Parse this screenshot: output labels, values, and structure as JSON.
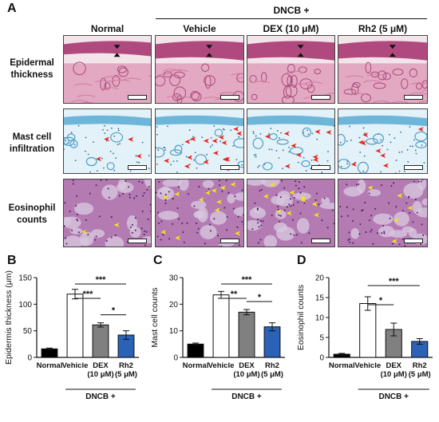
{
  "panel_a": {
    "letter": "A",
    "treatment_header": "DNCB +",
    "columns": [
      "Normal",
      "Vehicle",
      "DEX (10 μM)",
      "Rh2 (5 μM)"
    ],
    "rows": [
      {
        "lines": [
          "Epidermal",
          "thickness"
        ]
      },
      {
        "lines": [
          "Mast cell",
          "infiltration"
        ]
      },
      {
        "lines": [
          "Eosinophil",
          "counts"
        ]
      }
    ]
  },
  "colors": {
    "normal": "#000000",
    "vehicle": "#ffffff",
    "dex": "#808080",
    "rh2": "#2a62b8",
    "mast_arrow": "#e8231c",
    "eos_arrow": "#f2e617",
    "he_stain": "#c96f95",
    "toluidine": "#6eb6d9"
  },
  "chart_data": [
    {
      "letter": "B",
      "type": "bar",
      "ylabel": "Epidermis thickness (μm)",
      "ylim": [
        0,
        150
      ],
      "yticks": [
        0,
        50,
        100,
        150
      ],
      "category_lines": [
        [
          "Normal"
        ],
        [
          "Vehicle"
        ],
        [
          "DEX",
          "(10 μM)"
        ],
        [
          "Rh2",
          "(5 μM)"
        ]
      ],
      "values": [
        16,
        119,
        61,
        42
      ],
      "errors": [
        1.5,
        9,
        4,
        8
      ],
      "group_label": "DNCB +",
      "significance": [
        {
          "from": 1,
          "to": 2,
          "label": "***"
        },
        {
          "from": 1,
          "to": 3,
          "label": "***"
        },
        {
          "from": 2,
          "to": 3,
          "label": "*"
        }
      ]
    },
    {
      "letter": "C",
      "type": "bar",
      "ylabel": "Mast cell counts",
      "ylim": [
        0,
        30
      ],
      "yticks": [
        0,
        10,
        20,
        30
      ],
      "category_lines": [
        [
          "Normal"
        ],
        [
          "Vehicle"
        ],
        [
          "DEX",
          "(10 μM)"
        ],
        [
          "Rh2",
          "(5 μM)"
        ]
      ],
      "values": [
        5,
        23.5,
        17,
        11.5
      ],
      "errors": [
        0.4,
        1.3,
        1.0,
        1.5
      ],
      "group_label": "DNCB +",
      "significance": [
        {
          "from": 1,
          "to": 2,
          "label": "**"
        },
        {
          "from": 1,
          "to": 3,
          "label": "***"
        },
        {
          "from": 2,
          "to": 3,
          "label": "*"
        }
      ]
    },
    {
      "letter": "D",
      "type": "bar",
      "ylabel": "Eosinophil counts",
      "ylim": [
        0,
        20
      ],
      "yticks": [
        0,
        5,
        10,
        15,
        20
      ],
      "category_lines": [
        [
          "Normal"
        ],
        [
          "Vehicle"
        ],
        [
          "DEX",
          "(10 μM)"
        ],
        [
          "Rh2",
          "(5 μM)"
        ]
      ],
      "values": [
        0.8,
        13.5,
        7,
        4
      ],
      "errors": [
        0.2,
        1.7,
        1.6,
        0.7
      ],
      "group_label": "DNCB +",
      "significance": [
        {
          "from": 1,
          "to": 2,
          "label": "*"
        },
        {
          "from": 1,
          "to": 3,
          "label": "***"
        }
      ]
    }
  ]
}
